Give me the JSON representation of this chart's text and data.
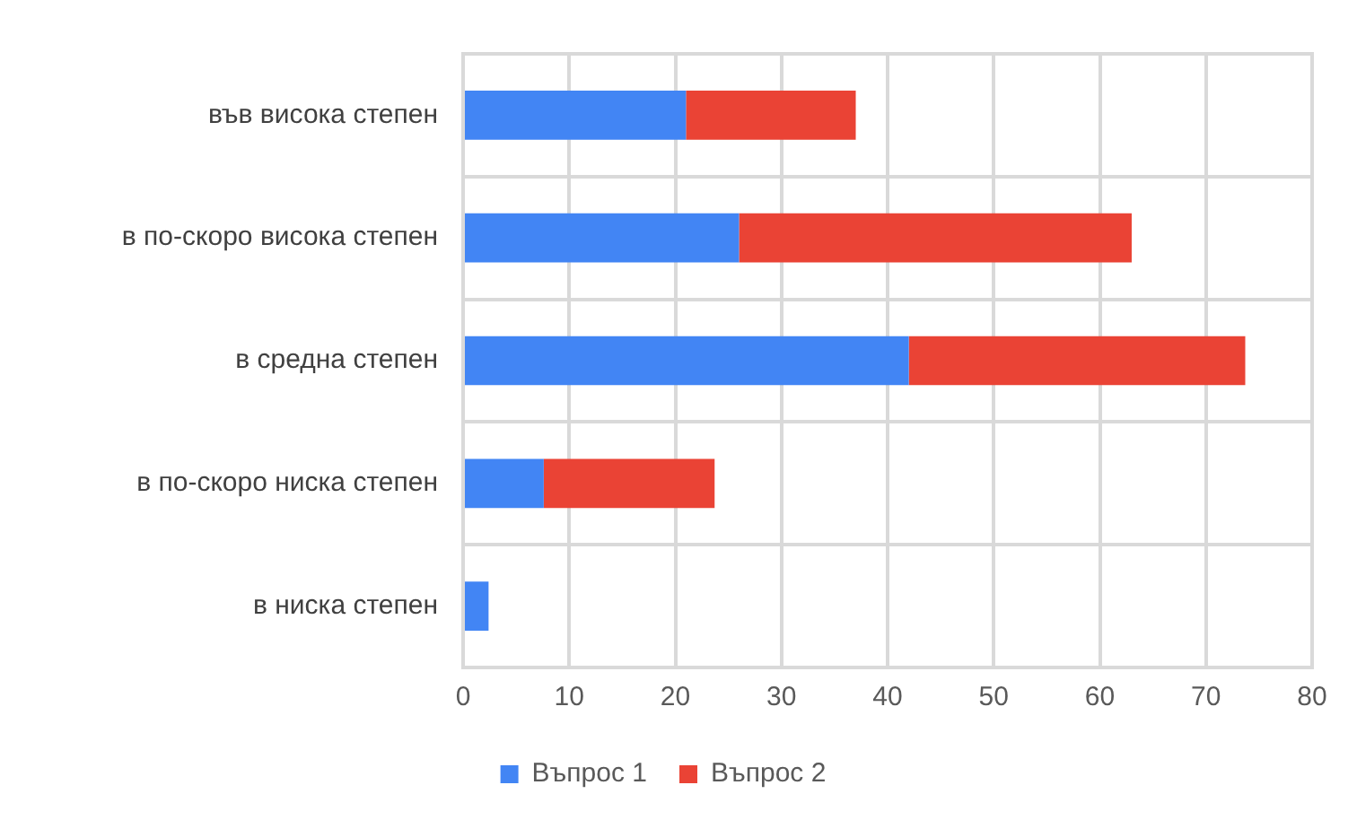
{
  "chart_data": {
    "type": "bar",
    "orientation": "horizontal",
    "stacked": true,
    "categories": [
      "във висока степен",
      "в по-скоро висока степен",
      "в средна степен",
      "в по-скоро ниска степен",
      "в ниска степен"
    ],
    "series": [
      {
        "name": "Въпрос 1",
        "color": "#4285f4",
        "values": [
          21,
          26,
          42,
          7.6,
          2.4
        ]
      },
      {
        "name": "Въпрос 2",
        "color": "#ea4335",
        "values": [
          16,
          37,
          31.7,
          16.1,
          null
        ]
      }
    ],
    "xlim": [
      0,
      80
    ],
    "xticks": [
      0,
      10,
      20,
      30,
      40,
      50,
      60,
      70,
      80
    ],
    "grid": true,
    "legend": "bottom"
  }
}
